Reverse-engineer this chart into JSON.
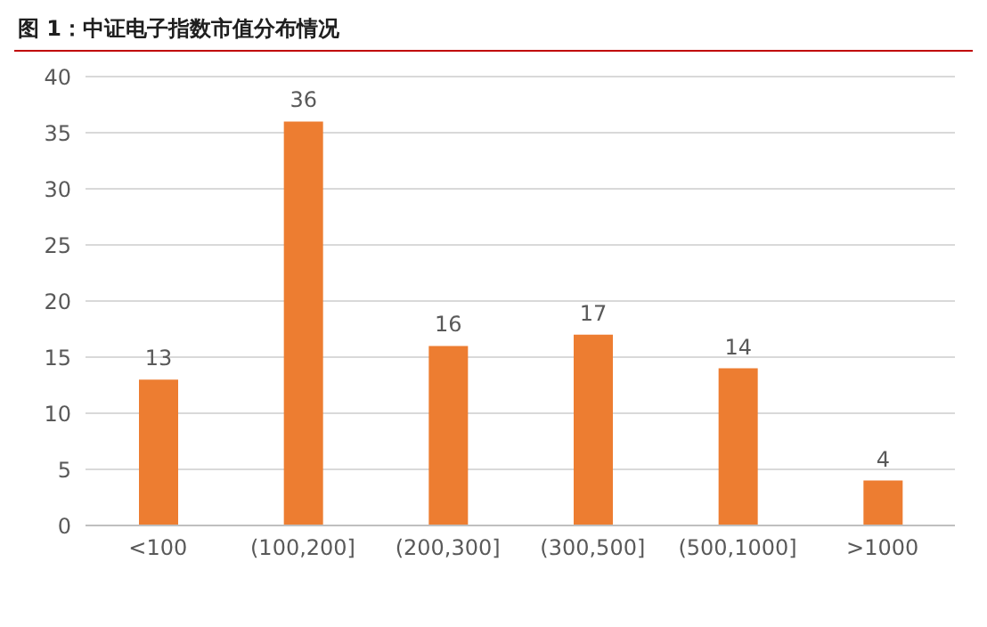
{
  "chart_data": {
    "type": "bar",
    "title": "图 1：中证电子指数市值分布情况",
    "categories": [
      "<100",
      "(100,200]",
      "(200,300]",
      "(300,500]",
      "(500,1000]",
      ">1000"
    ],
    "values": [
      13,
      36,
      16,
      17,
      14,
      4
    ],
    "color": "#ed7d31",
    "ylim": [
      0,
      40
    ],
    "yticks": [
      0,
      5,
      10,
      15,
      20,
      25,
      30,
      35,
      40
    ],
    "grid": "y",
    "data_labels": true
  }
}
